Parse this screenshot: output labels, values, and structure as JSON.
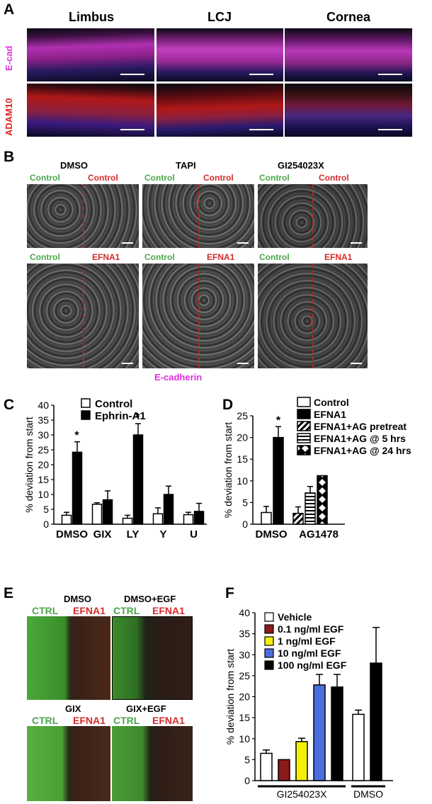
{
  "panels": {
    "A": {
      "label": "A",
      "columns": [
        "Limbus",
        "LCJ",
        "Cornea"
      ],
      "rows": [
        "E-cad",
        "ADAM10"
      ]
    },
    "B": {
      "label": "B",
      "treatments": [
        "DMSO",
        "TAPI",
        "GI254023X"
      ],
      "row1": {
        "left": "Control",
        "right": "Control"
      },
      "row2": {
        "left": "Control",
        "right": "EFNA1"
      },
      "footer": "E-cadherin"
    },
    "C": {
      "label": "C"
    },
    "D": {
      "label": "D"
    },
    "E": {
      "label": "E",
      "top_left": "DMSO",
      "top_right": "DMSO+EGF",
      "bottom_left": "GIX",
      "bottom_right": "GIX+EGF",
      "ctrl": "CTRL",
      "efna1": "EFNA1"
    },
    "F": {
      "label": "F"
    }
  },
  "chart_data": [
    {
      "id": "C",
      "type": "bar",
      "ylabel": "% deviation  from start",
      "ylim": [
        0,
        40
      ],
      "yticks": [
        0,
        5,
        10,
        15,
        20,
        25,
        30,
        35,
        40
      ],
      "categories": [
        "DMSO",
        "GIX",
        "LY",
        "Y",
        "U"
      ],
      "series": [
        {
          "name": "Control",
          "color": "#ffffff",
          "values": [
            3,
            6.7,
            2,
            3.5,
            3.2
          ],
          "errors": [
            1,
            0.5,
            1,
            2,
            0.8
          ]
        },
        {
          "name": "Ephrin-A1",
          "color": "#000000",
          "values": [
            24.2,
            8.2,
            30,
            10,
            4.3
          ],
          "errors": [
            3.5,
            3,
            3.8,
            2.8,
            2.7
          ]
        }
      ],
      "annotations": [
        {
          "category": "DMSO",
          "text": "*"
        },
        {
          "category": "LY",
          "text": "*"
        }
      ]
    },
    {
      "id": "D",
      "type": "bar",
      "ylabel": "% deviation  from start",
      "ylim": [
        0,
        25
      ],
      "yticks": [
        0,
        5,
        10,
        15,
        20,
        25
      ],
      "groups": [
        "DMSO",
        "AG1478"
      ],
      "series": [
        {
          "name": "Control",
          "pattern": "white",
          "group": 0,
          "value": 2.7,
          "error": 1.4
        },
        {
          "name": "EFNA1",
          "pattern": "black",
          "group": 0,
          "value": 20,
          "error": 2.5
        },
        {
          "name": "EFNA1+AG pretreat",
          "pattern": "diag",
          "group": 1,
          "value": 2.5,
          "error": 1.5
        },
        {
          "name": "EFNA1+AG @ 5 hrs",
          "pattern": "hstripe",
          "group": 1,
          "value": 7.2,
          "error": 1.5
        },
        {
          "name": "EFNA1+AG @ 24 hrs",
          "pattern": "diamond",
          "group": 1,
          "value": 11.2,
          "error": 0
        }
      ],
      "annotations": [
        {
          "series": "EFNA1",
          "text": "*"
        }
      ]
    },
    {
      "id": "F",
      "type": "bar",
      "ylabel": "% deviation  from start",
      "ylim": [
        0,
        40
      ],
      "yticks": [
        0,
        5,
        10,
        15,
        20,
        25,
        30,
        35,
        40
      ],
      "groups": [
        "GI254023X",
        "DMSO"
      ],
      "series": [
        {
          "name": "Vehicle",
          "color": "#ffffff"
        },
        {
          "name": "0.1  ng/ml EGF",
          "color": "#8b1a1a"
        },
        {
          "name": "1 ng/ml EGF",
          "color": "#f5f000"
        },
        {
          "name": "10  ng/ml  EGF",
          "color": "#4a6ee0"
        },
        {
          "name": "100  ng/ml EGF",
          "color": "#000000"
        }
      ],
      "bars": [
        {
          "group": 0,
          "series": 0,
          "value": 6.5,
          "error": 0.8
        },
        {
          "group": 0,
          "series": 1,
          "value": 5,
          "error": 0
        },
        {
          "group": 0,
          "series": 2,
          "value": 9.3,
          "error": 0.8
        },
        {
          "group": 0,
          "series": 3,
          "value": 22.8,
          "error": 2.5
        },
        {
          "group": 0,
          "series": 4,
          "value": 22.3,
          "error": 3
        },
        {
          "group": 1,
          "series": 0,
          "value": 15.8,
          "error": 1
        },
        {
          "group": 1,
          "series": 4,
          "value": 28,
          "error": 8.5
        }
      ]
    }
  ]
}
